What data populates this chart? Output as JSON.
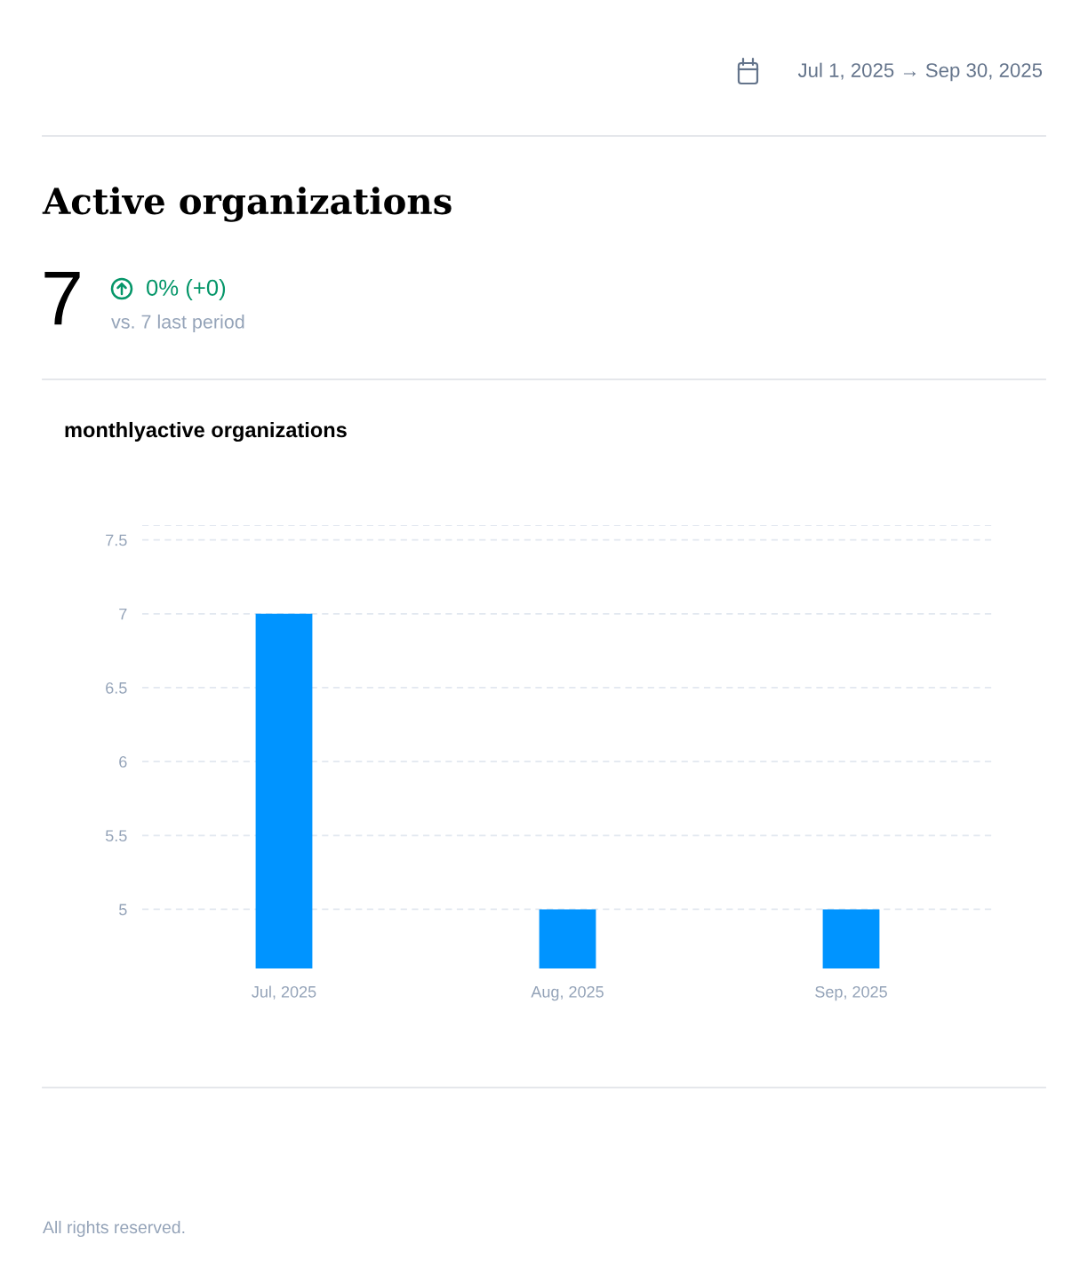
{
  "chart_data": {
    "type": "bar",
    "title": "Active organizations",
    "subtitle": "monthlyactive organizations",
    "categories": [
      "Jul, 2025",
      "Aug, 2025",
      "Sep, 2025"
    ],
    "values": [
      7,
      5,
      5
    ],
    "color": "#0094ff",
    "ylim": [
      4.6,
      7.6
    ],
    "yticks": [
      5,
      5.5,
      6,
      6.5,
      7,
      7.5,
      {
        "value": 7.6,
        "label": null
      }
    ],
    "grid": "y",
    "annotations": [
      "Jul 1, 2025 → Sep 30, 2025",
      "7",
      "0% (+0)",
      "vs. 7 last period",
      "All rights reserved."
    ]
  }
}
